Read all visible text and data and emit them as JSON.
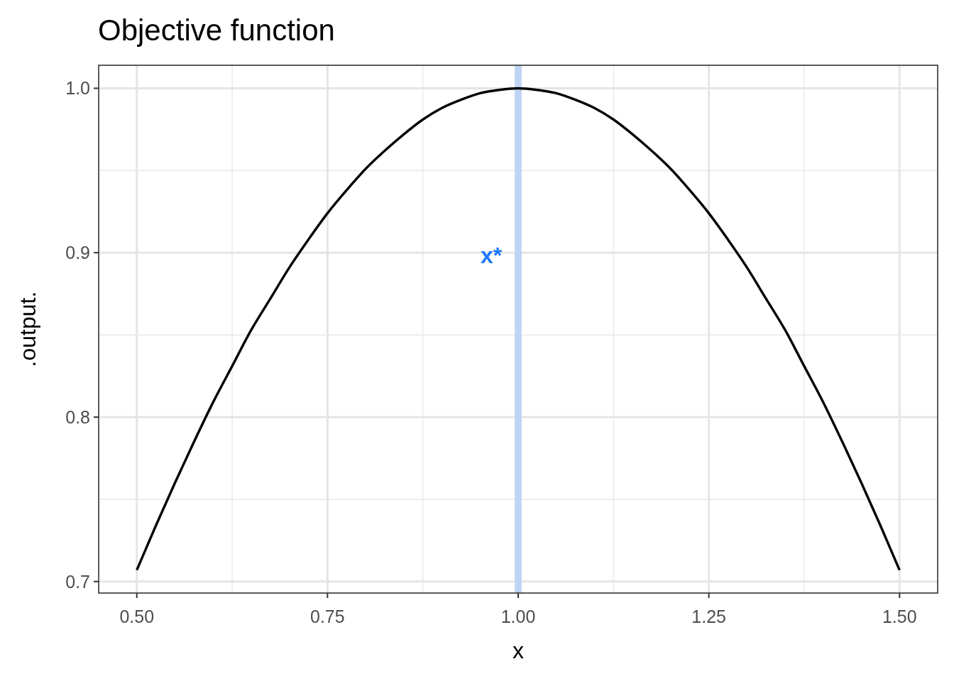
{
  "chart_data": {
    "type": "line",
    "title": "Objective function",
    "xlabel": "x",
    "ylabel": ".output.",
    "x": [
      0.5,
      0.525,
      0.55,
      0.575,
      0.6,
      0.625,
      0.65,
      0.675,
      0.7,
      0.725,
      0.75,
      0.775,
      0.8,
      0.825,
      0.85,
      0.875,
      0.9,
      0.925,
      0.95,
      0.975,
      1.0,
      1.025,
      1.05,
      1.075,
      1.1,
      1.125,
      1.15,
      1.175,
      1.2,
      1.225,
      1.25,
      1.275,
      1.3,
      1.325,
      1.35,
      1.375,
      1.4,
      1.425,
      1.45,
      1.475,
      1.5
    ],
    "series": [
      {
        "color": "#000000",
        "values": [
          0.707,
          0.734,
          0.76,
          0.785,
          0.809,
          0.831,
          0.853,
          0.872,
          0.891,
          0.908,
          0.924,
          0.938,
          0.951,
          0.962,
          0.972,
          0.981,
          0.988,
          0.993,
          0.997,
          0.999,
          1.0,
          0.999,
          0.997,
          0.993,
          0.988,
          0.981,
          0.972,
          0.962,
          0.951,
          0.938,
          0.924,
          0.908,
          0.891,
          0.872,
          0.853,
          0.831,
          0.809,
          0.785,
          0.76,
          0.734,
          0.707
        ]
      }
    ],
    "xlim": [
      0.45,
      1.55
    ],
    "ylim": [
      0.693,
      1.014
    ],
    "xticks": [
      {
        "value": 0.5,
        "label": "0.50"
      },
      {
        "value": 0.75,
        "label": "0.75"
      },
      {
        "value": 1.0,
        "label": "1.00"
      },
      {
        "value": 1.25,
        "label": "1.25"
      },
      {
        "value": 1.5,
        "label": "1.50"
      }
    ],
    "yticks": [
      {
        "value": 0.7,
        "label": "0.7"
      },
      {
        "value": 0.8,
        "label": "0.8"
      },
      {
        "value": 0.9,
        "label": "0.9"
      },
      {
        "value": 1.0,
        "label": "1.0"
      }
    ],
    "grid": true,
    "marker": "none",
    "line_style": "solid",
    "ref_lines": [
      {
        "axis": "x",
        "value": 1.0,
        "label": "x*",
        "color": "#bad0f4"
      }
    ]
  }
}
